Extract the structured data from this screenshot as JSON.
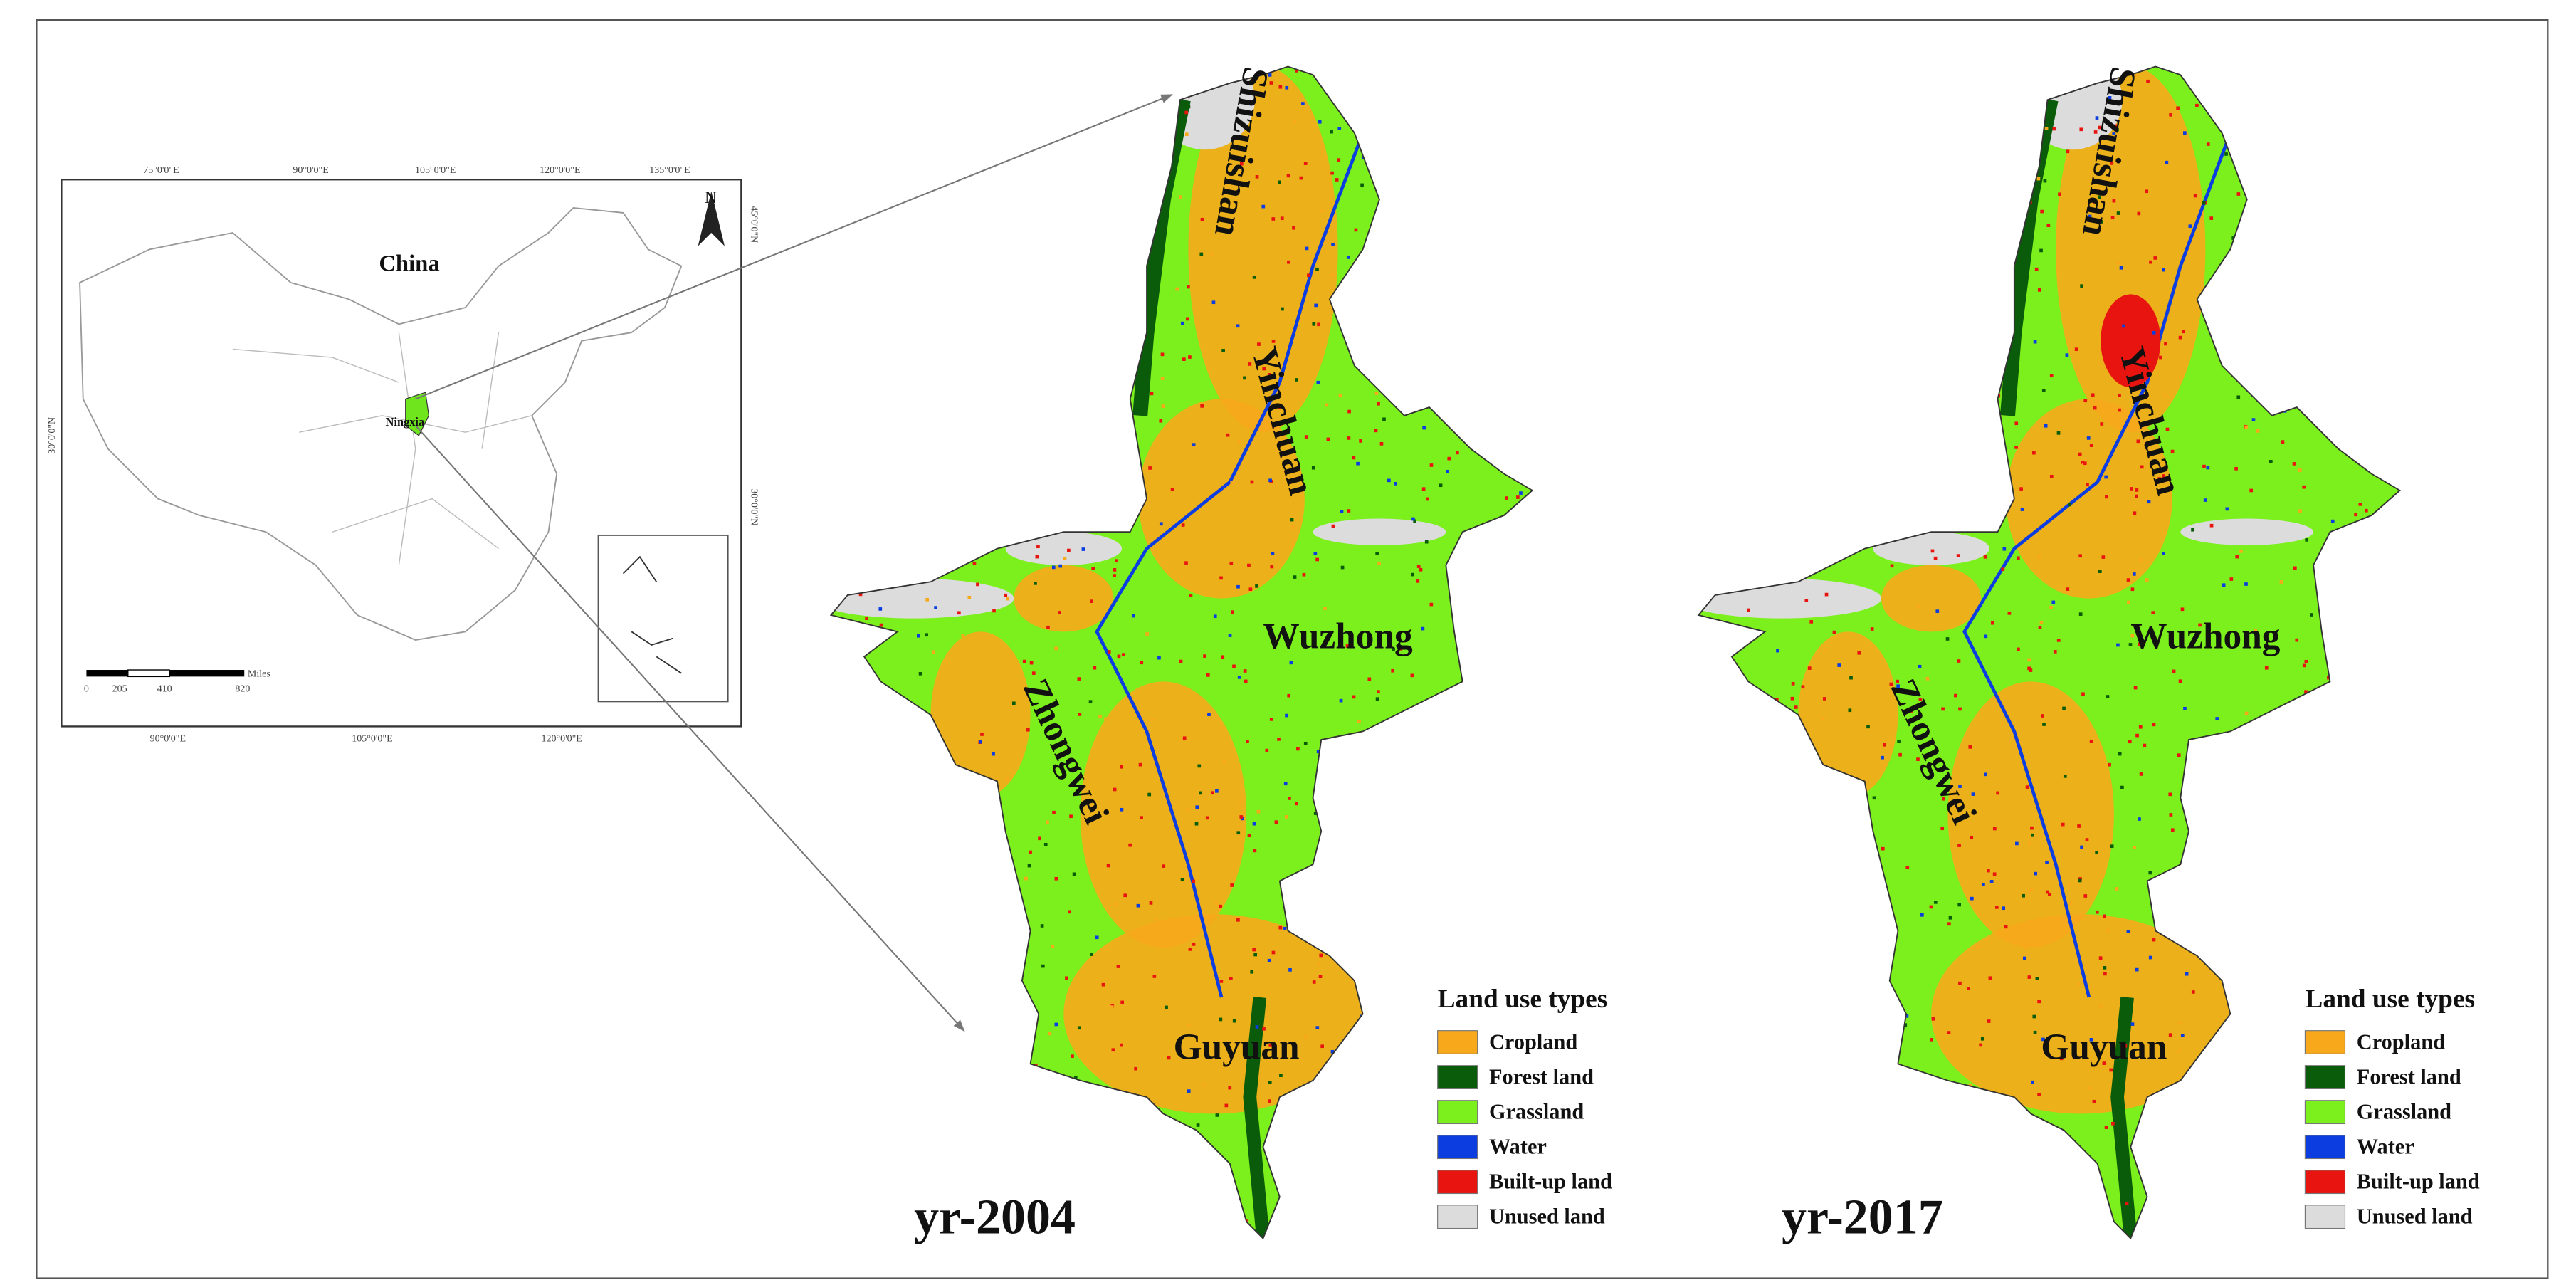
{
  "inset": {
    "country": "China",
    "province": "Ningxia",
    "north": "N",
    "top_ticks": [
      "75°0'0\"E",
      "90°0'0\"E",
      "105°0'0\"E",
      "120°0'0\"E",
      "135°0'0\"E"
    ],
    "bottom_ticks": [
      "90°0'0\"E",
      "105°0'0\"E",
      "120°0'0\"E"
    ],
    "left_ticks": [
      "30°0'0\"N"
    ],
    "right_ticks": [
      "45°0'0\"N",
      "30°0'0\"N"
    ],
    "scale": {
      "unit": "Miles",
      "ticks": [
        "0",
        "205",
        "410",
        "820"
      ]
    }
  },
  "maps": [
    {
      "year": "yr-2004",
      "regions": [
        "Shizuishan",
        "Yinchuan",
        "Wuzhong",
        "Zhongwei",
        "Guyuan"
      ],
      "legend": {
        "title": "Land use types",
        "items": [
          {
            "name": "Cropland",
            "color": "#f7a81b"
          },
          {
            "name": "Forest land",
            "color": "#0a5c0a"
          },
          {
            "name": "Grassland",
            "color": "#7cf01c"
          },
          {
            "name": "Water",
            "color": "#0b3de0"
          },
          {
            "name": "Built-up land",
            "color": "#e8140f"
          },
          {
            "name": "Unused land",
            "color": "#dcdcdc"
          }
        ]
      }
    },
    {
      "year": "yr-2017",
      "regions": [
        "Shizuishan",
        "Yinchuan",
        "Wuzhong",
        "Zhongwei",
        "Guyuan"
      ],
      "legend": {
        "title": "Land use types",
        "items": [
          {
            "name": "Cropland",
            "color": "#f7a81b"
          },
          {
            "name": "Forest land",
            "color": "#0a5c0a"
          },
          {
            "name": "Grassland",
            "color": "#7cf01c"
          },
          {
            "name": "Water",
            "color": "#0b3de0"
          },
          {
            "name": "Built-up land",
            "color": "#e8140f"
          },
          {
            "name": "Unused land",
            "color": "#dcdcdc"
          }
        ]
      }
    }
  ]
}
